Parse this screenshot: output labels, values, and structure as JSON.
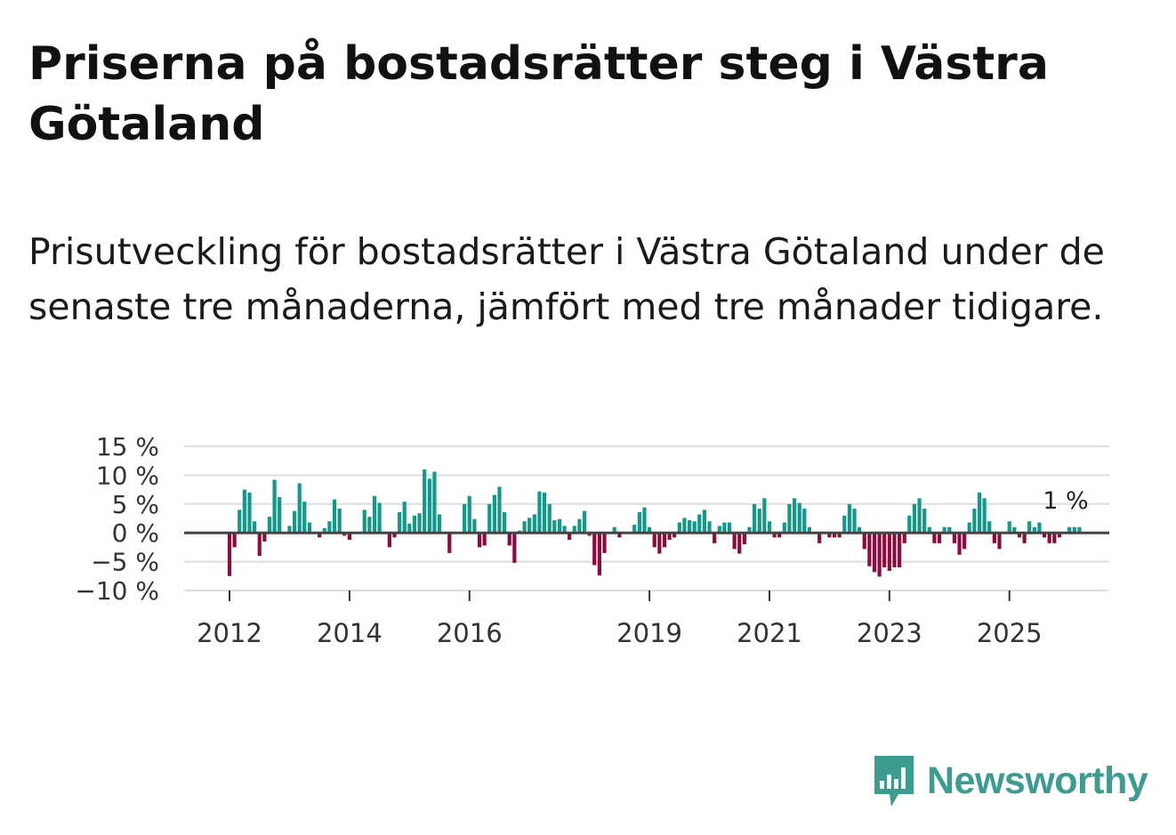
{
  "title": "Priserna på bostadsrätter steg i Västra Götaland",
  "subtitle": "Prisutveckling för bostadsrätter i Västra Götaland under de senaste tre månaderna, jämfört med tre månader tidigare.",
  "brand": "Newsworthy",
  "colors": {
    "positive": "#13998a",
    "negative": "#8e0a3f",
    "grid": "#dddddd",
    "zero": "#444444"
  },
  "chart_data": {
    "type": "bar",
    "start": "2012-01",
    "frequency": "monthly",
    "unit": "%",
    "ylim": [
      -10,
      15
    ],
    "yticks": [
      15,
      10,
      5,
      0,
      -5,
      -10
    ],
    "ytick_labels": [
      "15 %",
      "10 %",
      "5 %",
      "0 %",
      "−5 %",
      "−10 %"
    ],
    "xticks": [
      "2012",
      "2014",
      "2016",
      "2019",
      "2021",
      "2023",
      "2025"
    ],
    "last_label": "1 %",
    "values": [
      -7.5,
      -2.5,
      4,
      7.5,
      7,
      2,
      -4,
      -1.5,
      2.8,
      9.2,
      6.2,
      0,
      1.2,
      3.8,
      8.6,
      5.4,
      1.8,
      0,
      -0.8,
      0.8,
      2,
      5.8,
      4.2,
      -0.5,
      -1.2,
      0,
      0,
      4,
      2.8,
      6.4,
      5.2,
      0,
      -2.5,
      -0.8,
      3.6,
      5.4,
      1.6,
      3,
      3.4,
      11,
      9.4,
      10.6,
      3.2,
      0,
      -3.5,
      0,
      0,
      5,
      6.4,
      2.4,
      -2.5,
      -2.2,
      5,
      6.6,
      8,
      3.6,
      -2.2,
      -5.2,
      0.4,
      2,
      2.6,
      3.2,
      7.2,
      7,
      5,
      2.2,
      2.4,
      1.2,
      -1.2,
      1.2,
      2.4,
      3.8,
      -0.5,
      -5.6,
      -7.4,
      -3.5,
      0,
      1,
      -0.8,
      0,
      0,
      1.4,
      3.6,
      4.4,
      1,
      -2.5,
      -3.6,
      -2.5,
      -1.2,
      -0.8,
      1.8,
      2.6,
      2.2,
      2,
      3.2,
      4,
      2,
      -1.8,
      1.2,
      1.8,
      1.8,
      -2.8,
      -3.6,
      -2,
      1,
      5,
      4.2,
      6,
      2,
      -0.8,
      -0.8,
      1.8,
      5,
      6,
      5.2,
      4.2,
      1,
      0,
      -1.8,
      0,
      -0.8,
      -0.8,
      -0.8,
      3,
      5,
      4.2,
      1,
      -2.8,
      -5.8,
      -6.8,
      -7.6,
      -6,
      -6.6,
      -6,
      -6,
      -1.8,
      3,
      5,
      6,
      4.2,
      1,
      -1.8,
      -1.8,
      1,
      1,
      -1.8,
      -3.8,
      -2.8,
      1.8,
      4.2,
      7,
      6,
      2,
      -1.8,
      -2.8,
      0,
      2,
      1,
      -0.8,
      -1.8,
      2,
      1,
      1.8,
      -0.8,
      -1.8,
      -1.8,
      -0.8,
      0,
      1,
      1,
      1
    ]
  }
}
